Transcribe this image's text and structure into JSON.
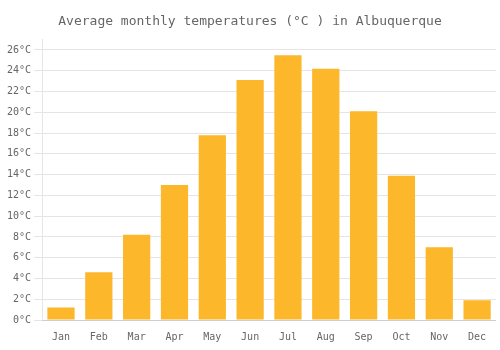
{
  "chart_data": {
    "type": "bar",
    "title": "Average monthly temperatures (°C ) in Albuquerque",
    "categories": [
      "Jan",
      "Feb",
      "Mar",
      "Apr",
      "May",
      "Jun",
      "Jul",
      "Aug",
      "Sep",
      "Oct",
      "Nov",
      "Dec"
    ],
    "values": [
      1.2,
      4.6,
      8.2,
      13.0,
      17.8,
      23.1,
      25.5,
      24.2,
      20.1,
      13.9,
      7.0,
      1.9
    ],
    "color": "#FDB72A",
    "ylim": [
      0,
      27
    ],
    "yticks": [
      {
        "value": 0,
        "label": "0°C"
      },
      {
        "value": 2,
        "label": "2°C"
      },
      {
        "value": 4,
        "label": "4°C"
      },
      {
        "value": 6,
        "label": "6°C"
      },
      {
        "value": 8,
        "label": "8°C"
      },
      {
        "value": 10,
        "label": "10°C"
      },
      {
        "value": 12,
        "label": "12°C"
      },
      {
        "value": 14,
        "label": "14°C"
      },
      {
        "value": 16,
        "label": "16°C"
      },
      {
        "value": 18,
        "label": "18°C"
      },
      {
        "value": 20,
        "label": "20°C"
      },
      {
        "value": 22,
        "label": "22°C"
      },
      {
        "value": 24,
        "label": "24°C"
      },
      {
        "value": 26,
        "label": "26°C"
      }
    ],
    "grid": true
  }
}
